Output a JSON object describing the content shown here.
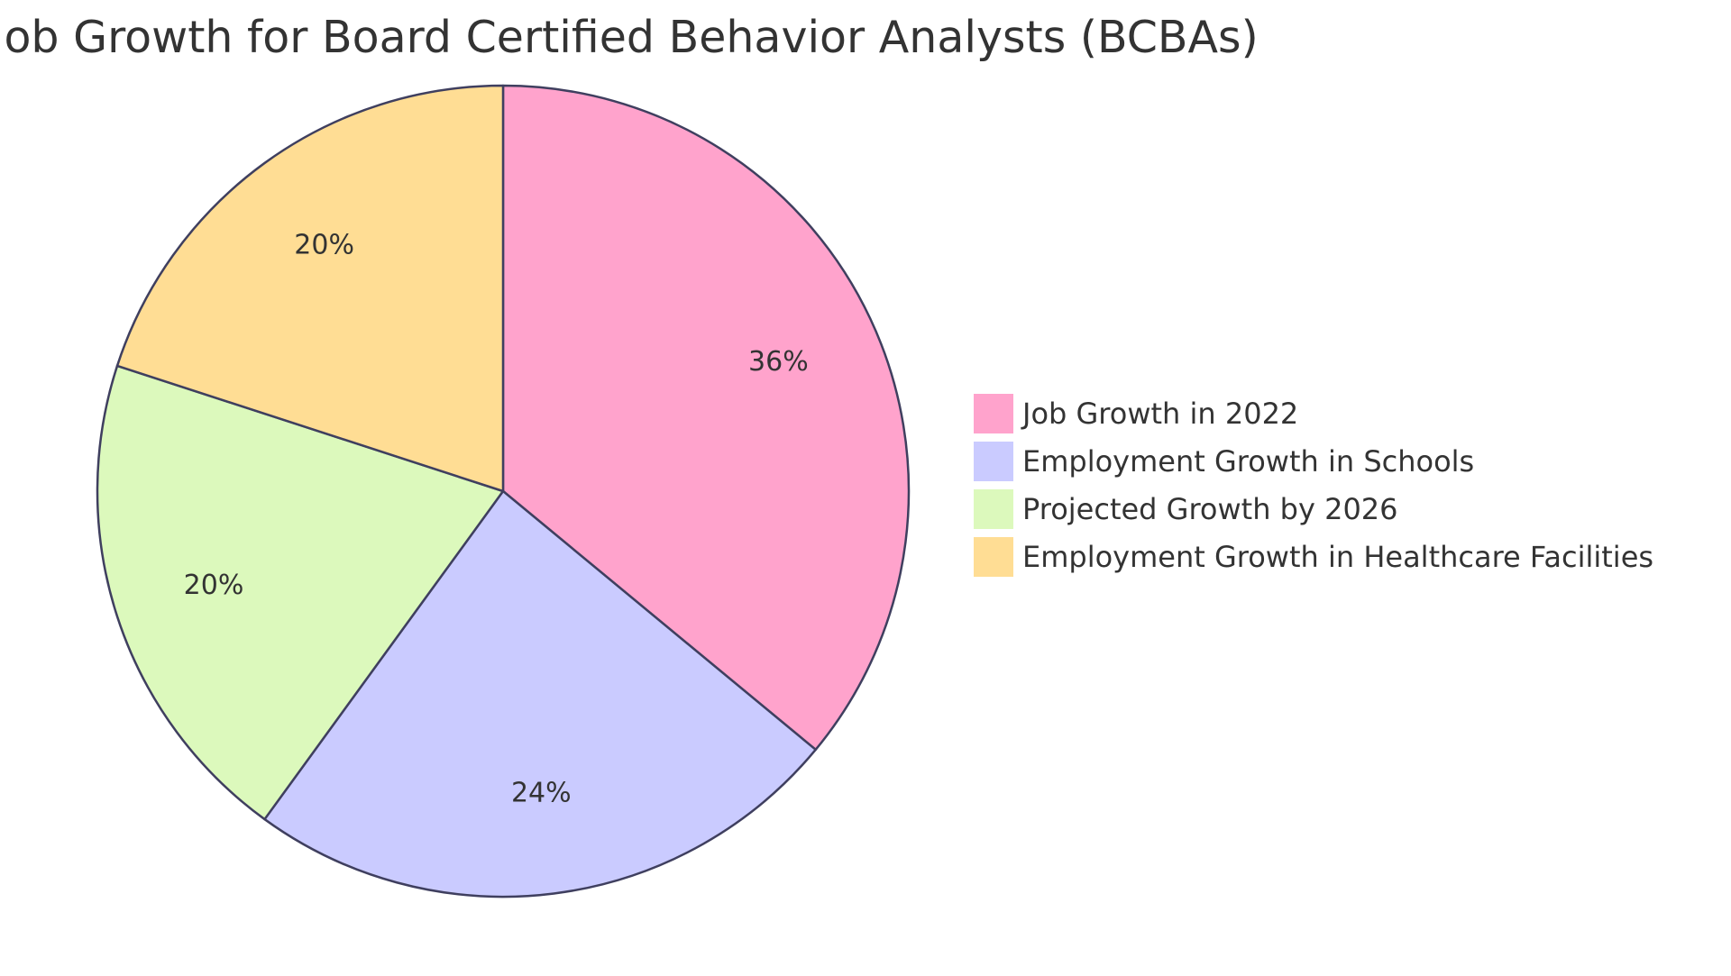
{
  "chart_data": {
    "type": "pie",
    "title": "Job Growth for Board Certified Behavior Analysts (BCBAs)",
    "slices": [
      {
        "label": "Job Growth in 2022",
        "value": 36,
        "display": "36%",
        "color": "#FFA3CC"
      },
      {
        "label": "Employment Growth in Schools",
        "value": 24,
        "display": "24%",
        "color": "#CACBFF"
      },
      {
        "label": "Projected Growth by 2026",
        "value": 20,
        "display": "20%",
        "color": "#DCF9BC"
      },
      {
        "label": "Employment Growth in Healthcare Facilities",
        "value": 20,
        "display": "20%",
        "color": "#FFDD94"
      }
    ],
    "stroke_color": "#3F3F5F",
    "legend_position": "right"
  }
}
